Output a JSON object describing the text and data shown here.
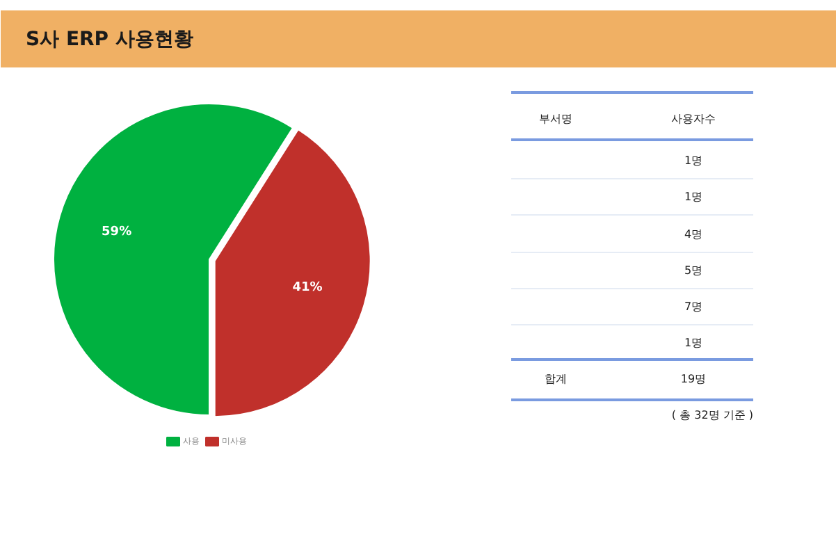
{
  "chart_data": {
    "type": "pie",
    "title": "S사 ERP  사용현황",
    "categories": [
      "사용",
      "미사용"
    ],
    "values": [
      59,
      41
    ],
    "colors": [
      "#00b140",
      "#c0302b"
    ],
    "value_labels": [
      "59%",
      "41%"
    ],
    "legend": "bottom",
    "annotations": [
      "부서명",
      "사용자수",
      "1명",
      "1명",
      "4명",
      "5명",
      "7명",
      "1명",
      "합계",
      "19명",
      "( 총 32명 기준 )"
    ]
  }
}
